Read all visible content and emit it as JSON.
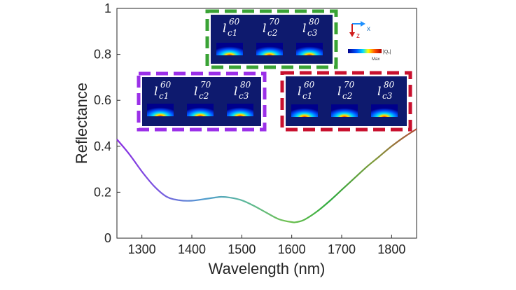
{
  "chart_data": {
    "type": "line",
    "xlabel": "Wavelength (nm)",
    "ylabel": "Reflectance",
    "xlim": [
      1250,
      1850
    ],
    "ylim": [
      0,
      1
    ],
    "x_ticks": [
      "1300",
      "1400",
      "1500",
      "1600",
      "1700",
      "1800"
    ],
    "y_ticks": [
      "0",
      "0.2",
      "0.4",
      "0.6",
      "0.8",
      "1"
    ],
    "grid": false,
    "series": [
      {
        "x": [
          1250,
          1275,
          1300,
          1325,
          1350,
          1375,
          1400,
          1425,
          1450,
          1460,
          1475,
          1500,
          1525,
          1550,
          1575,
          1600,
          1610,
          1625,
          1650,
          1675,
          1700,
          1725,
          1750,
          1775,
          1800,
          1825,
          1850
        ],
        "values": [
          0.43,
          0.365,
          0.29,
          0.225,
          0.18,
          0.165,
          0.163,
          0.17,
          0.178,
          0.18,
          0.177,
          0.165,
          0.14,
          0.11,
          0.082,
          0.07,
          0.07,
          0.08,
          0.115,
          0.16,
          0.21,
          0.26,
          0.31,
          0.355,
          0.4,
          0.44,
          0.475
        ],
        "gradient_colors": [
          "#8a2be2",
          "#7a5ae0",
          "#4f9bd0",
          "#5cb89a",
          "#6fc04f",
          "#2eaa3f",
          "#7f9a3a",
          "#b04a35"
        ]
      }
    ],
    "insets": [
      {
        "border_color": "#3aa335",
        "labels": [
          {
            "base": "l",
            "sub": "c1",
            "sup": "60"
          },
          {
            "base": "l",
            "sub": "c2",
            "sup": "70"
          },
          {
            "base": "l",
            "sub": "c3",
            "sup": "80"
          }
        ]
      },
      {
        "border_color": "#9b30e8",
        "labels": [
          {
            "base": "l",
            "sub": "c1",
            "sup": "60"
          },
          {
            "base": "l",
            "sub": "c2",
            "sup": "70"
          },
          {
            "base": "l",
            "sub": "c3",
            "sup": "80"
          }
        ]
      },
      {
        "border_color": "#c8102e",
        "labels": [
          {
            "base": "l",
            "sub": "c1",
            "sup": "60"
          },
          {
            "base": "l",
            "sub": "c2",
            "sup": "70"
          },
          {
            "base": "l",
            "sub": "c3",
            "sup": "80"
          }
        ]
      }
    ],
    "axes_icon": {
      "x_label": "x",
      "z_label": "z"
    },
    "colorbar": {
      "label": "|Qₓ|",
      "max_label": "Max"
    }
  }
}
